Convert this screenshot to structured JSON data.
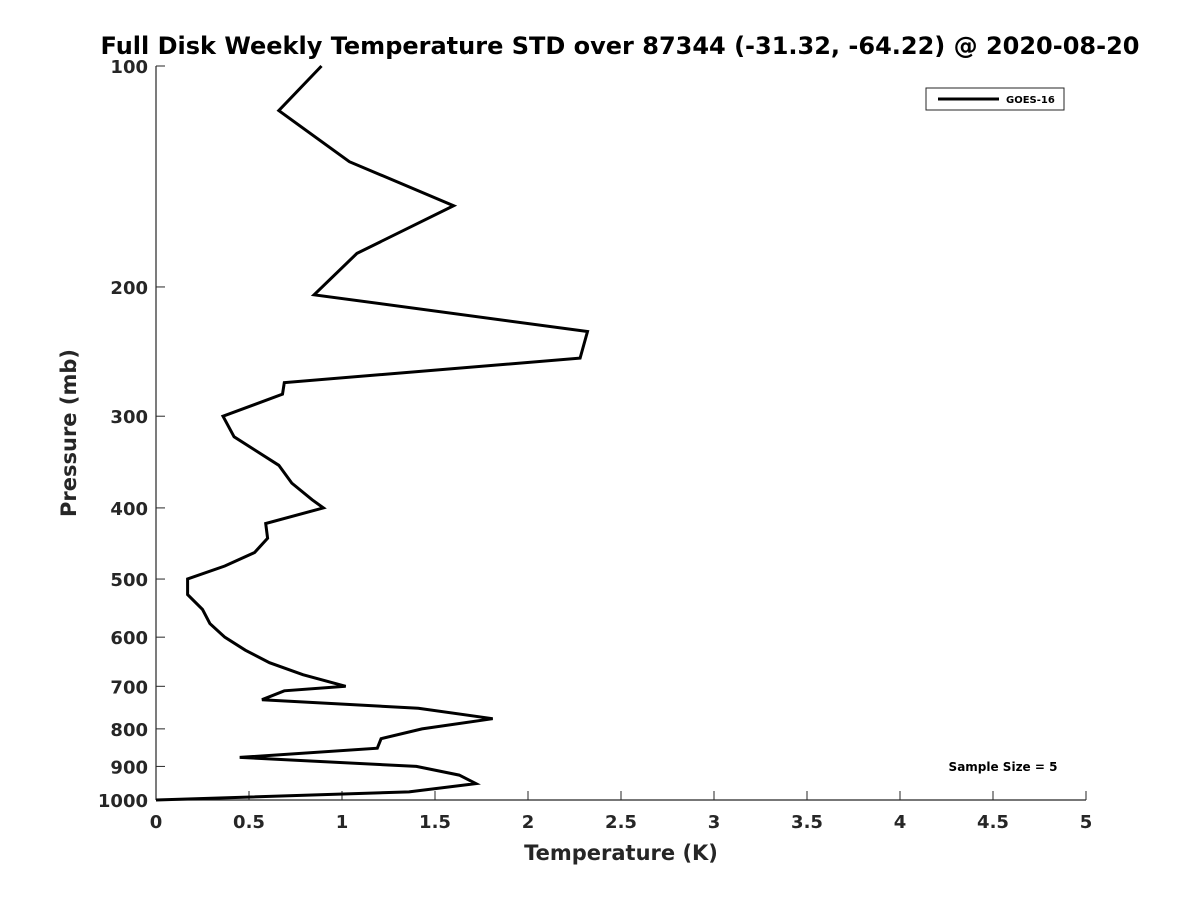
{
  "chart_data": {
    "type": "line",
    "title": "Full Disk Weekly Temperature STD over 87344 (-31.32, -64.22) @ 2020-08-20",
    "xlabel": "Temperature (K)",
    "ylabel": "Pressure (mb)",
    "xlim": [
      0,
      5
    ],
    "ylim": [
      100,
      1000
    ],
    "y_scale": "log",
    "y_reversed": true,
    "x_ticks": [
      0,
      0.5,
      1,
      1.5,
      2,
      2.5,
      3,
      3.5,
      4,
      4.5,
      5
    ],
    "x_tick_labels": [
      "0",
      "0.5",
      "1",
      "1.5",
      "2",
      "2.5",
      "3",
      "3.5",
      "4",
      "4.5",
      "5"
    ],
    "y_ticks": [
      100,
      200,
      300,
      400,
      500,
      600,
      700,
      800,
      900,
      1000
    ],
    "y_tick_labels": [
      "100",
      "200",
      "300",
      "400",
      "500",
      "600",
      "700",
      "800",
      "900",
      "1000"
    ],
    "grid": false,
    "legend_position": "top-right",
    "annotation": "Sample Size = 5",
    "series": [
      {
        "name": "GOES-16",
        "color": "#000000",
        "x": [
          0.89,
          0.66,
          1.04,
          1.6,
          1.08,
          0.85,
          2.32,
          2.28,
          0.69,
          0.68,
          0.36,
          0.42,
          0.66,
          0.73,
          0.84,
          0.9,
          0.59,
          0.6,
          0.53,
          0.37,
          0.17,
          0.17,
          0.25,
          0.29,
          0.37,
          0.48,
          0.61,
          0.79,
          1.02,
          0.69,
          0.57,
          1.41,
          1.81,
          1.43,
          1.21,
          1.19,
          0.45,
          1.4,
          1.63,
          1.72,
          1.36,
          0.0
        ],
        "y": [
          100,
          115,
          135,
          155,
          180,
          205,
          230,
          250,
          270,
          280,
          300,
          320,
          350,
          370,
          390,
          400,
          420,
          440,
          460,
          480,
          500,
          525,
          550,
          575,
          600,
          625,
          650,
          675,
          700,
          710,
          730,
          750,
          775,
          800,
          825,
          850,
          875,
          900,
          925,
          950,
          975,
          1000
        ]
      }
    ]
  }
}
